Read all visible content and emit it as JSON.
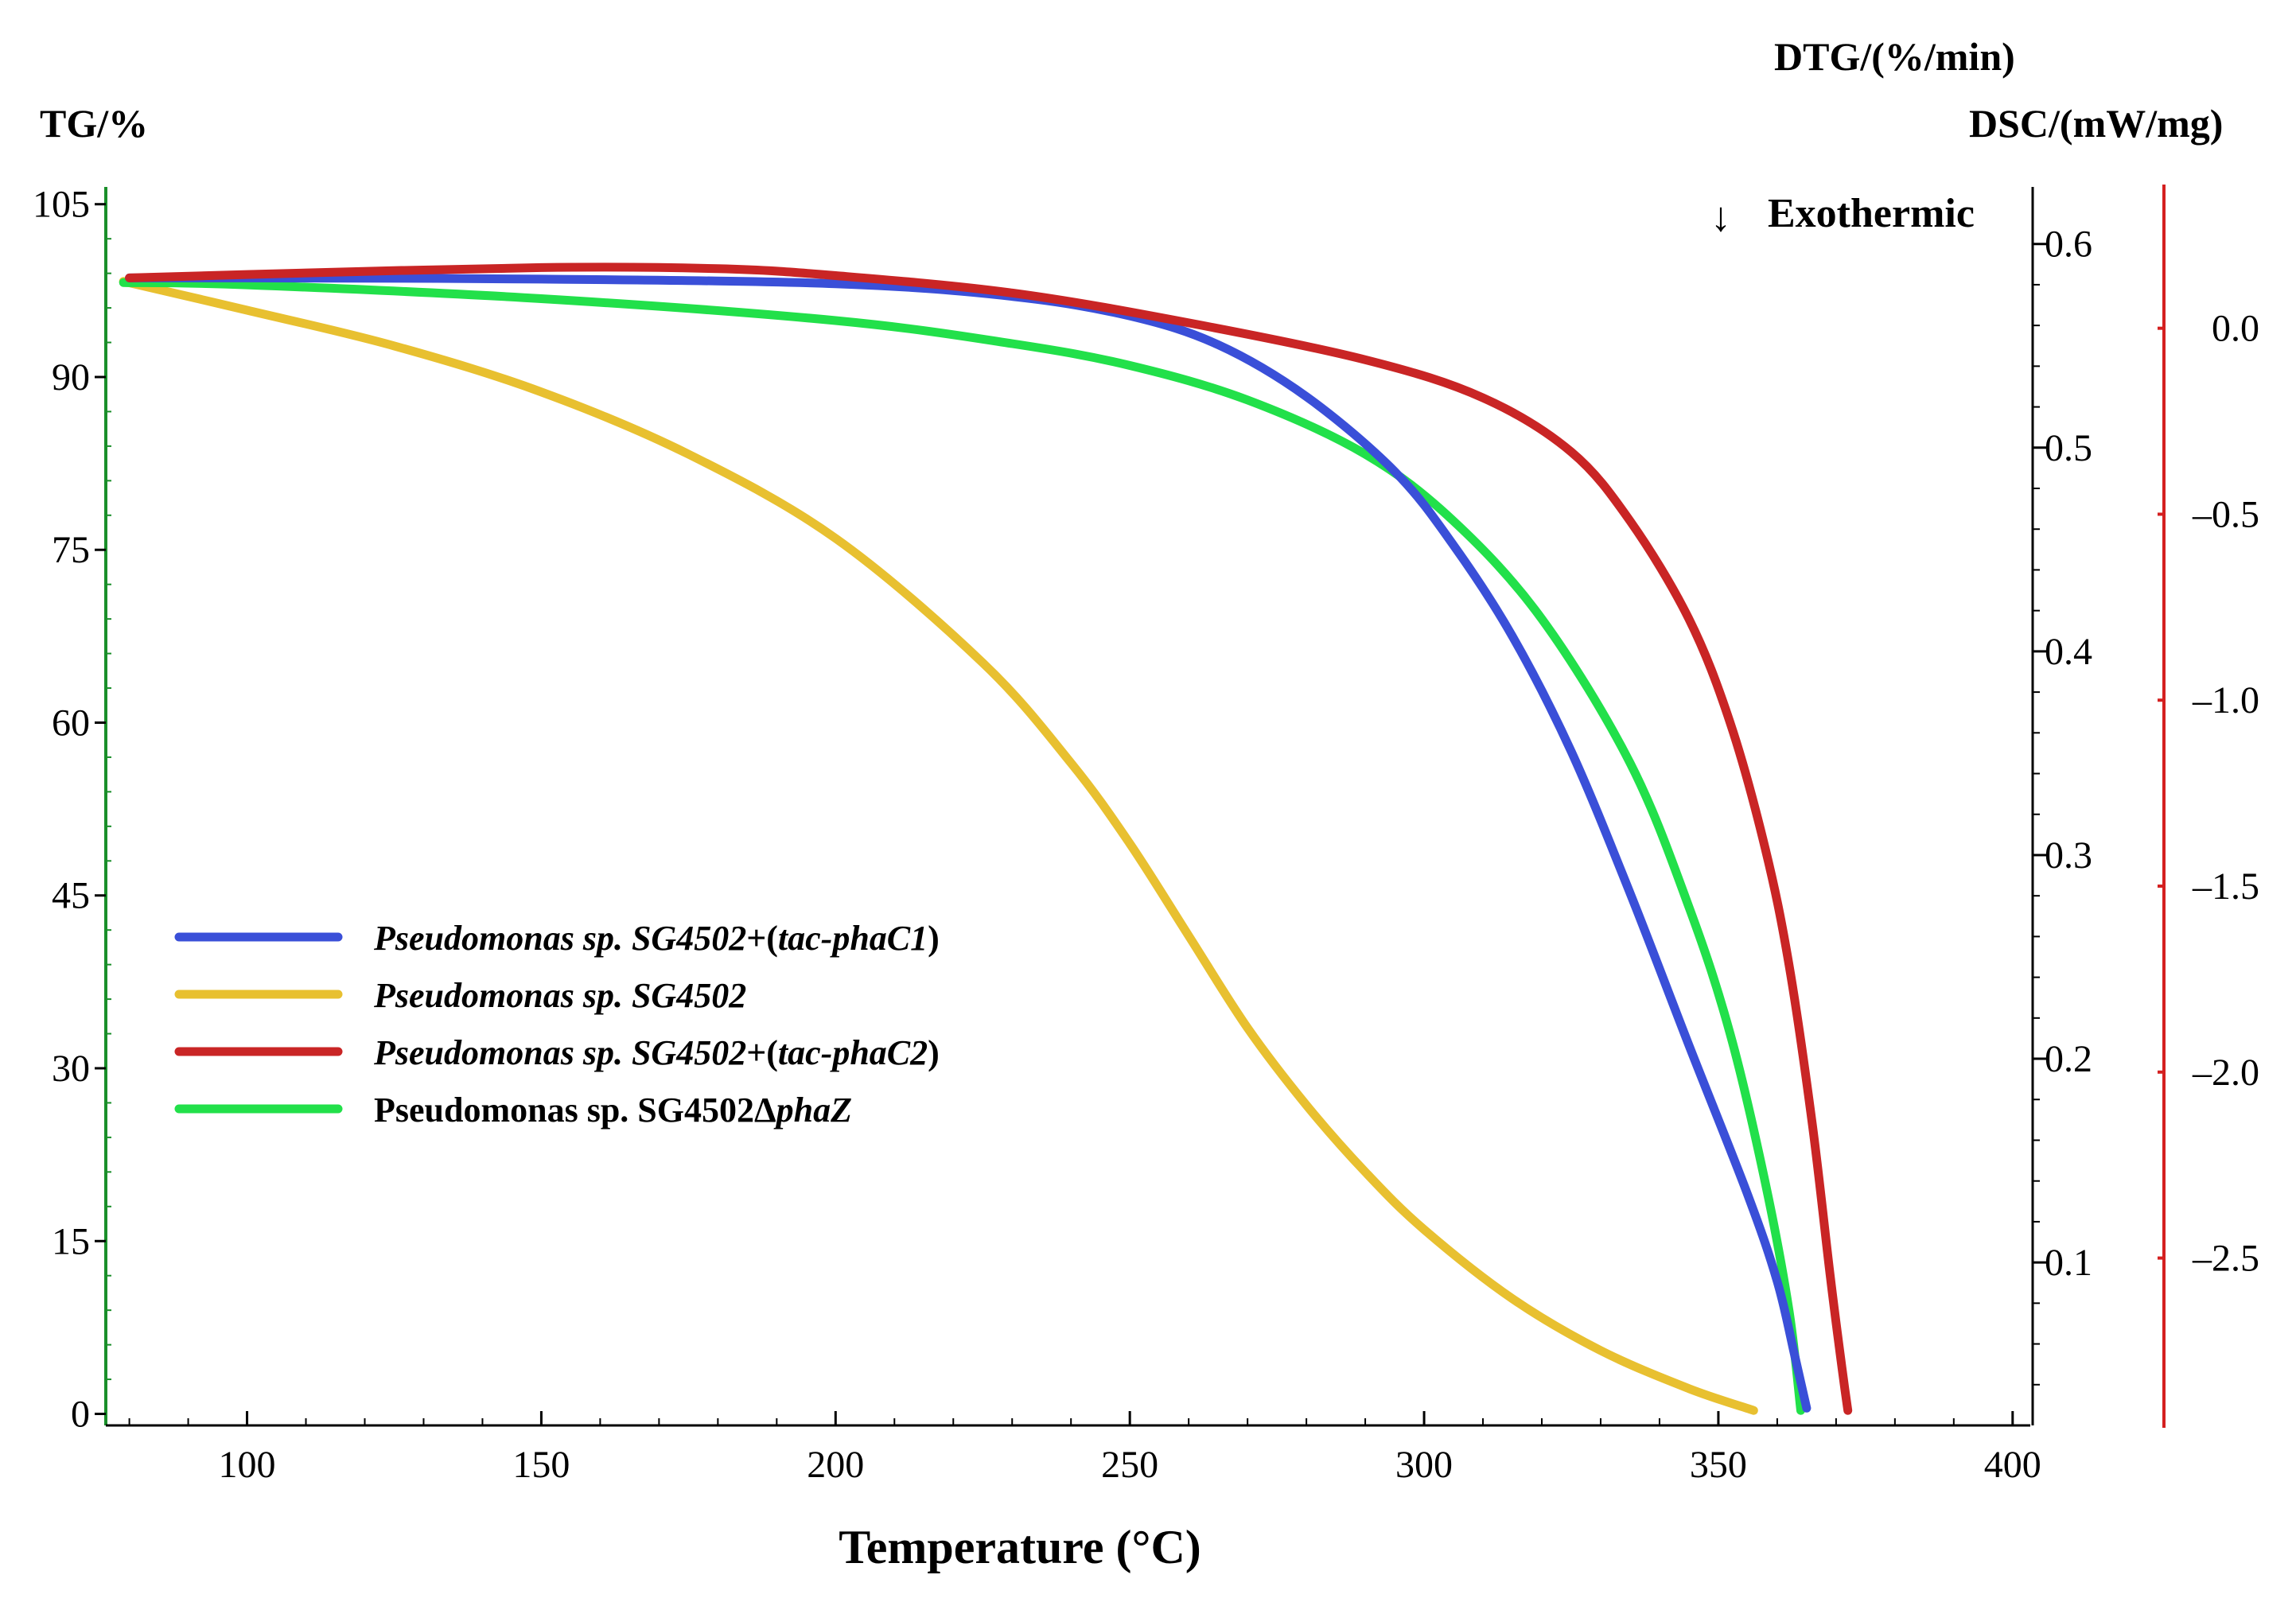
{
  "chart_data": {
    "type": "line",
    "xlabel": "Temperature (°C)",
    "x_ticks": [
      100,
      150,
      200,
      250,
      300,
      350,
      400
    ],
    "xlim": [
      76,
      403
    ],
    "y_axes": {
      "tg": {
        "label": "TG/%",
        "ticks": [
          0,
          15,
          30,
          45,
          60,
          75,
          90,
          105
        ],
        "ylim": [
          -1,
          106.5
        ],
        "color": "#1a8f2a"
      },
      "dtg": {
        "label": "DTG/(%/min)",
        "ticks": [
          0.1,
          0.2,
          0.3,
          0.4,
          0.5,
          0.6
        ],
        "ylim": [
          0.02,
          0.628
        ]
      },
      "dsc": {
        "label": "DSC/(mW/mg)",
        "ticks": [
          "0.0",
          "–0.5",
          "–1.0",
          "–1.5",
          "–2.0",
          "–2.5"
        ],
        "tick_values": [
          0.0,
          -0.5,
          -1.0,
          -1.5,
          -2.0,
          -2.5
        ],
        "ylim": [
          -2.95,
          0.38
        ],
        "color": "#d42020"
      }
    },
    "annotation": {
      "arrow": "↓",
      "text": "Exothermic"
    },
    "series": [
      {
        "name": "Pseudomonas sp. SG4502+(tac-phaC1)",
        "legend_parts": [
          {
            "text": "Pseudomonas sp. SG4502",
            "italic": true
          },
          {
            "text": "+(",
            "italic": false
          },
          {
            "text": "tac-phaC1",
            "italic": true
          },
          {
            "text": ")",
            "italic": false
          }
        ],
        "color": "#3a4fd8",
        "x": [
          80,
          100,
          150,
          200,
          230,
          250,
          265,
          280,
          295,
          305,
          315,
          325,
          335,
          345,
          355,
          360,
          363,
          365
        ],
        "y": [
          98.6,
          98.6,
          98.5,
          98.1,
          97.0,
          95.3,
          92.8,
          88.3,
          81.8,
          75.4,
          67.5,
          57.5,
          45.2,
          32.0,
          19.0,
          11.5,
          5.0,
          0.5
        ]
      },
      {
        "name": "Pseudomonas sp. SG4502",
        "legend_parts": [
          {
            "text": "Pseudomonas sp. SG4502",
            "italic": true
          }
        ],
        "color": "#e8c030",
        "x": [
          79,
          100,
          125,
          150,
          175,
          200,
          225,
          240,
          250,
          260,
          270,
          280,
          290,
          300,
          315,
          330,
          345,
          356
        ],
        "y": [
          98.3,
          95.8,
          92.7,
          88.7,
          83.3,
          76.0,
          65.2,
          56.5,
          49.5,
          41.5,
          33.5,
          26.8,
          21.0,
          16.0,
          10.0,
          5.5,
          2.2,
          0.3
        ]
      },
      {
        "name": "Pseudomonas sp. SG4502+(tac-phaC2)",
        "legend_parts": [
          {
            "text": "Pseudomonas sp. SG4502",
            "italic": true
          },
          {
            "text": "+(",
            "italic": false
          },
          {
            "text": "tac-phaC2",
            "italic": true
          },
          {
            "text": ")",
            "italic": false
          }
        ],
        "color": "#c92525",
        "x": [
          80,
          100,
          150,
          180,
          200,
          230,
          260,
          290,
          310,
          325,
          335,
          345,
          352,
          358,
          362,
          366,
          369,
          371,
          372
        ],
        "y": [
          98.6,
          98.9,
          99.5,
          99.4,
          98.8,
          97.3,
          94.7,
          91.5,
          88.2,
          83.5,
          77.5,
          69.0,
          60.0,
          49.0,
          39.0,
          25.0,
          12.0,
          4.0,
          0.3
        ]
      },
      {
        "name": "Pseudomonas sp. SG4502ΔphaZ",
        "legend_parts": [
          {
            "text": "Pseudomonas sp. SG4502Δ",
            "italic": false
          },
          {
            "text": "phaZ",
            "italic": true
          }
        ],
        "color": "#22e04a",
        "x": [
          79,
          100,
          150,
          200,
          230,
          250,
          270,
          290,
          305,
          320,
          335,
          345,
          352,
          358,
          362,
          364
        ],
        "y": [
          98.2,
          98.0,
          96.8,
          94.9,
          92.9,
          91.0,
          88.0,
          83.3,
          77.5,
          69.0,
          56.5,
          44.0,
          33.0,
          20.0,
          9.0,
          0.3
        ]
      }
    ]
  }
}
